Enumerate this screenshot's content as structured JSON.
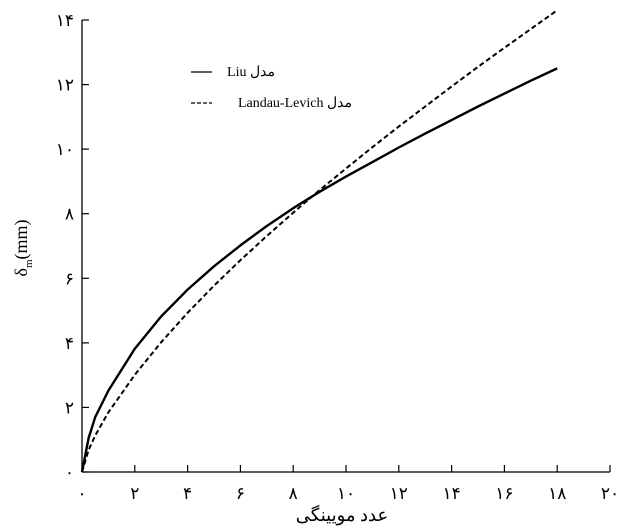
{
  "chart_data": {
    "type": "line",
    "xlabel": "عدد مویینگی",
    "ylabel_main": "δ",
    "ylabel_sub": "m",
    "ylabel_unit": "(mm)",
    "xlim": [
      0,
      20
    ],
    "ylim": [
      0,
      14
    ],
    "x_ticks": [
      0,
      2,
      4,
      6,
      8,
      10,
      12,
      14,
      16,
      18,
      20
    ],
    "x_tick_labels": [
      "۰",
      "۲",
      "۴",
      "۶",
      "۸",
      "۱۰",
      "۱۲",
      "۱۴",
      "۱۶",
      "۱۸",
      "۲۰"
    ],
    "y_ticks": [
      0,
      2,
      4,
      6,
      8,
      10,
      12,
      14
    ],
    "y_tick_labels": [
      "۰",
      "۲",
      "۴",
      "۶",
      "۸",
      "۱۰",
      "۱۲",
      "۱۴"
    ],
    "grid": false,
    "legend_position": "top-left",
    "series": [
      {
        "name": "Liu مدل",
        "style": "solid",
        "x": [
          0,
          0.25,
          0.5,
          1,
          2,
          3,
          4,
          5,
          6,
          7,
          8,
          9,
          10,
          11,
          12,
          13,
          14,
          15,
          16,
          17,
          18
        ],
        "y": [
          0,
          1.05,
          1.7,
          2.52,
          3.82,
          4.82,
          5.65,
          6.37,
          7.02,
          7.62,
          8.17,
          8.68,
          9.15,
          9.6,
          10.05,
          10.48,
          10.9,
          11.32,
          11.72,
          12.12,
          12.5
        ]
      },
      {
        "name": "Landau-Levich مدل",
        "style": "dashed",
        "x": [
          0,
          0.25,
          0.5,
          1,
          2,
          3,
          4,
          5,
          6,
          7,
          8,
          9,
          10,
          11,
          12,
          13,
          14,
          15,
          16,
          17,
          18
        ],
        "y": [
          0,
          0.68,
          1.13,
          1.85,
          3.01,
          4.02,
          4.93,
          5.77,
          6.56,
          7.31,
          8.03,
          8.73,
          9.4,
          10.06,
          10.7,
          11.32,
          11.94,
          12.55,
          13.14,
          13.72,
          14.3
        ]
      }
    ]
  }
}
